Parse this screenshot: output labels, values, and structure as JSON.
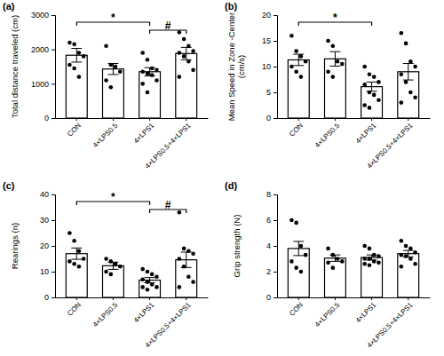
{
  "chart_data": [
    {
      "type": "bar",
      "title": "(a)",
      "y_label": "Total distance traveled (cm)",
      "categories": [
        "CON",
        "4×LPS0.5",
        "4×LPS1",
        "4×LPS0.5+4×LPS1"
      ],
      "values": [
        1830,
        1430,
        1350,
        1880
      ],
      "errors": [
        200,
        160,
        120,
        180
      ],
      "points": [
        [
          2200,
          2150,
          1900,
          1800,
          1550,
          1450,
          1200
        ],
        [
          2100,
          1550,
          1500,
          1350,
          1100,
          900
        ],
        [
          1900,
          1700,
          1450,
          1400,
          1350,
          1300,
          1250,
          1100,
          1000,
          750
        ],
        [
          2500,
          2300,
          2100,
          1950,
          1900,
          1800,
          1650,
          1400,
          1200
        ]
      ],
      "ylim": [
        0,
        3000
      ],
      "yticks": [
        0,
        1000,
        2000,
        3000
      ],
      "color": "#ffffff",
      "annotations": [
        {
          "text": "*",
          "from": 0,
          "to": 2
        },
        {
          "text": "#",
          "from": 2,
          "to": 3
        }
      ]
    },
    {
      "type": "bar",
      "title": "(b)",
      "y_label": [
        "Mean Speed in Zone -Center",
        "(cm/s)"
      ],
      "categories": [
        "CON",
        "4×LPS0.5",
        "4×LPS1",
        "4×LPS0.5+4×LPS1"
      ],
      "values": [
        11.3,
        11.5,
        6.1,
        9.0
      ],
      "errors": [
        1.1,
        1.4,
        0.9,
        1.6
      ],
      "points": [
        [
          16,
          13,
          12,
          11,
          10,
          9,
          8
        ],
        [
          15,
          14,
          11,
          10.5,
          9,
          8
        ],
        [
          10,
          8.5,
          8,
          7,
          6.5,
          5,
          4.5,
          3.5,
          2.5,
          2
        ],
        [
          16.5,
          14.5,
          11,
          10,
          8.5,
          7,
          5,
          4,
          3
        ]
      ],
      "ylim": [
        0,
        20
      ],
      "yticks": [
        0,
        5,
        10,
        15,
        20
      ],
      "color": "#ffffff",
      "annotations": [
        {
          "text": "*",
          "from": 0,
          "to": 2
        }
      ]
    },
    {
      "type": "bar",
      "title": "(c)",
      "y_label": "Rearings (n)",
      "categories": [
        "CON",
        "4×LPS0.5",
        "4×LPS1",
        "4×LPS0.5+4×LPS1"
      ],
      "values": [
        17,
        12.3,
        6.7,
        14.6
      ],
      "errors": [
        2.2,
        1.4,
        1.0,
        3.0
      ],
      "points": [
        [
          25,
          22,
          18,
          15,
          14,
          13,
          12
        ],
        [
          15,
          14,
          13,
          12,
          10,
          9
        ],
        [
          11,
          10,
          9,
          8,
          7,
          6,
          5,
          4,
          4,
          3
        ],
        [
          33,
          19,
          18,
          17,
          15,
          12,
          8,
          6,
          4
        ]
      ],
      "ylim": [
        0,
        40
      ],
      "yticks": [
        0,
        10,
        20,
        30,
        40
      ],
      "color": "#ffffff",
      "annotations": [
        {
          "text": "*",
          "from": 0,
          "to": 2
        },
        {
          "text": "#",
          "from": 2,
          "to": 3
        }
      ]
    },
    {
      "type": "bar",
      "title": "(d)",
      "y_label": "Grip strength (N)",
      "categories": [
        "CON",
        "4×LPS0.5",
        "4×LPS1",
        "4×LPS0.5+4×LPS1"
      ],
      "values": [
        3.8,
        3.05,
        3.1,
        3.4
      ],
      "errors": [
        0.55,
        0.25,
        0.2,
        0.25
      ],
      "points": [
        [
          6.0,
          5.8,
          4.0,
          3.3,
          2.8,
          2.3,
          2.0
        ],
        [
          3.8,
          3.3,
          3.0,
          2.8,
          2.7,
          2.3
        ],
        [
          4.0,
          3.8,
          3.3,
          3.2,
          3.0,
          3.0,
          2.8,
          2.7,
          2.6,
          2.5
        ],
        [
          4.4,
          4.0,
          3.8,
          3.5,
          3.3,
          3.2,
          3.0,
          2.6,
          2.4
        ]
      ],
      "ylim": [
        0,
        8
      ],
      "yticks": [
        0,
        2,
        4,
        6,
        8
      ],
      "color": "#ffffff",
      "annotations": []
    }
  ]
}
